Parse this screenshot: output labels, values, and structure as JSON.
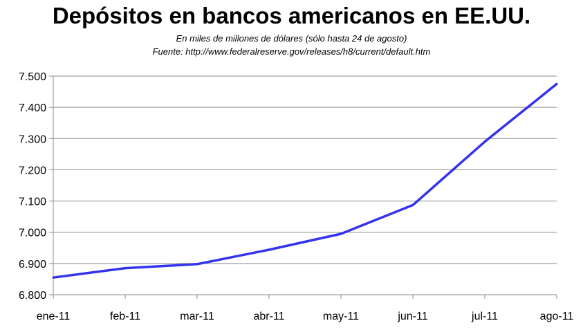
{
  "chart_data": {
    "type": "line",
    "title": "Depósitos en bancos americanos en EE.UU.",
    "subtitle": "En miles de millones de dólares (sólo hasta 24 de agosto)",
    "source": "Fuente: http://www.federalreserve.gov/releases/h8/current/default.htm",
    "categories": [
      "ene-11",
      "feb-11",
      "mar-11",
      "abr-11",
      "may-11",
      "jun-11",
      "jul-11",
      "ago-11"
    ],
    "series": [
      {
        "values": [
          6855,
          6885,
          6898,
          6944,
          6995,
          7087,
          7290,
          7475
        ],
        "color": "#3333ee"
      }
    ],
    "ylim": [
      6800,
      7500
    ],
    "yticks": [
      "6.800",
      "6.900",
      "7.000",
      "7.100",
      "7.200",
      "7.300",
      "7.400",
      "7.500"
    ],
    "xlabel": "",
    "ylabel": "",
    "grid": true,
    "legend": "none"
  }
}
